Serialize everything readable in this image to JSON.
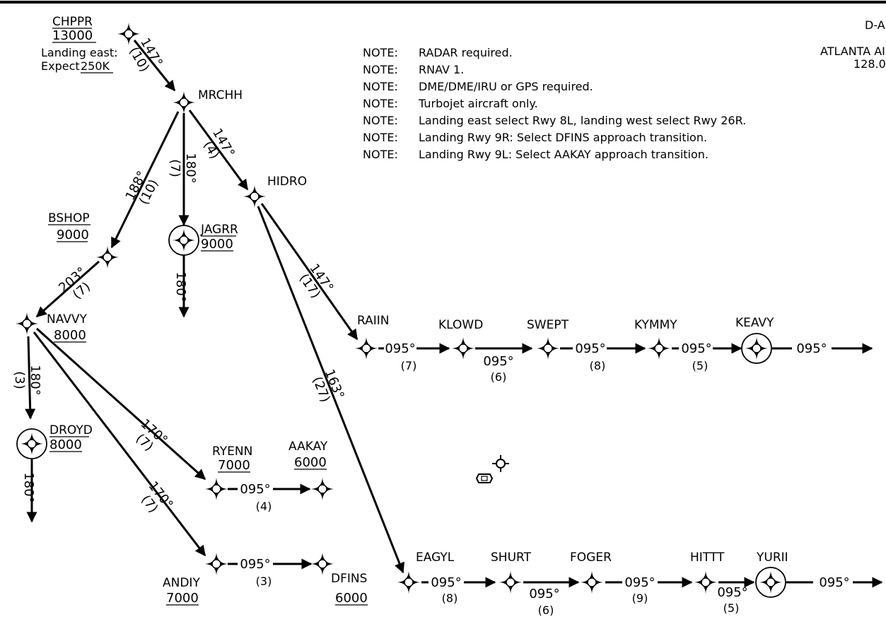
{
  "chart": {
    "header_id": "D-A",
    "header_facility": "ATLANTA AI",
    "header_freq": "128.0"
  },
  "notes": {
    "prefix": "NOTE:",
    "items": [
      "RADAR required.",
      "RNAV 1.",
      "DME/DME/IRU or GPS required.",
      "Turbojet aircraft only.",
      "Landing east select Rwy 8L, landing west select Rwy 26R.",
      "Landing Rwy 9R: Select DFINS approach transition.",
      "Landing Rwy 9L: Select AAKAY approach transition."
    ]
  },
  "waypoints": {
    "chppr": {
      "name": "CHPPR",
      "alt": "13000"
    },
    "mrchh": {
      "name": "MRCHH"
    },
    "hidro": {
      "name": "HIDRO"
    },
    "bshop": {
      "name": "BSHOP",
      "alt": "9000"
    },
    "jagrr": {
      "name": "JAGRR",
      "alt": "9000"
    },
    "navvy": {
      "name": "NAVVY",
      "alt": "8000"
    },
    "droyd": {
      "name": "DROYD",
      "alt": "8000"
    },
    "ryenn": {
      "name": "RYENN",
      "alt": "7000"
    },
    "aakay": {
      "name": "AAKAY",
      "alt": "6000"
    },
    "andiy": {
      "name": "ANDIY",
      "alt": "7000"
    },
    "dfins": {
      "name": "DFINS",
      "alt": "6000"
    },
    "raiin": {
      "name": "RAIIN"
    },
    "klowd": {
      "name": "KLOWD"
    },
    "swept": {
      "name": "SWEPT"
    },
    "kymmy": {
      "name": "KYMMY"
    },
    "keavy": {
      "name": "KEAVY"
    },
    "eagyl": {
      "name": "EAGYL"
    },
    "shurt": {
      "name": "SHURT"
    },
    "foger": {
      "name": "FOGER"
    },
    "hittt": {
      "name": "HITTT"
    },
    "yurii": {
      "name": "YURII"
    }
  },
  "chppr_speed": {
    "line1": "Landing east:",
    "expect": "Expect",
    "speed": "250K"
  },
  "legs": {
    "chppr_mrchh": {
      "course": "147°",
      "dist": "(10)"
    },
    "mrchh_hidro": {
      "course": "147°",
      "dist": "(4)"
    },
    "mrchh_jagrr": {
      "course": "180°",
      "dist": "(7)"
    },
    "mrchh_bshop": {
      "course": "188°",
      "dist": "(10)"
    },
    "jagrr_out": {
      "course": "180°"
    },
    "bshop_navvy": {
      "course": "203°",
      "dist": "(7)"
    },
    "navvy_droyd": {
      "course": "180°",
      "dist": "(3)"
    },
    "droyd_out": {
      "course": "180°"
    },
    "navvy_ryenn": {
      "course": "170°",
      "dist": "(7)"
    },
    "navvy_andiy": {
      "course": "170°",
      "dist": "(7)"
    },
    "ryenn_aakay": {
      "course": "095°",
      "dist": "(4)"
    },
    "andiy_dfins": {
      "course": "095°",
      "dist": "(3)"
    },
    "hidro_raiin": {
      "course": "147°",
      "dist": "(17)"
    },
    "hidro_eagyl": {
      "course": "163°",
      "dist": "(27)"
    },
    "raiin_klowd": {
      "course": "095°",
      "dist": "(7)"
    },
    "klowd_swept": {
      "course": "095°",
      "dist": "(6)"
    },
    "swept_kymmy": {
      "course": "095°",
      "dist": "(8)"
    },
    "kymmy_keavy": {
      "course": "095°",
      "dist": "(5)"
    },
    "keavy_out": {
      "course": "095°"
    },
    "eagyl_shurt": {
      "course": "095°",
      "dist": "(8)"
    },
    "shurt_foger": {
      "course": "095°",
      "dist": "(6)"
    },
    "foger_hittt": {
      "course": "095°",
      "dist": "(9)"
    },
    "hittt_yurii": {
      "course": "095°",
      "dist": "(5)"
    },
    "yurii_out": {
      "course": "095°"
    }
  }
}
